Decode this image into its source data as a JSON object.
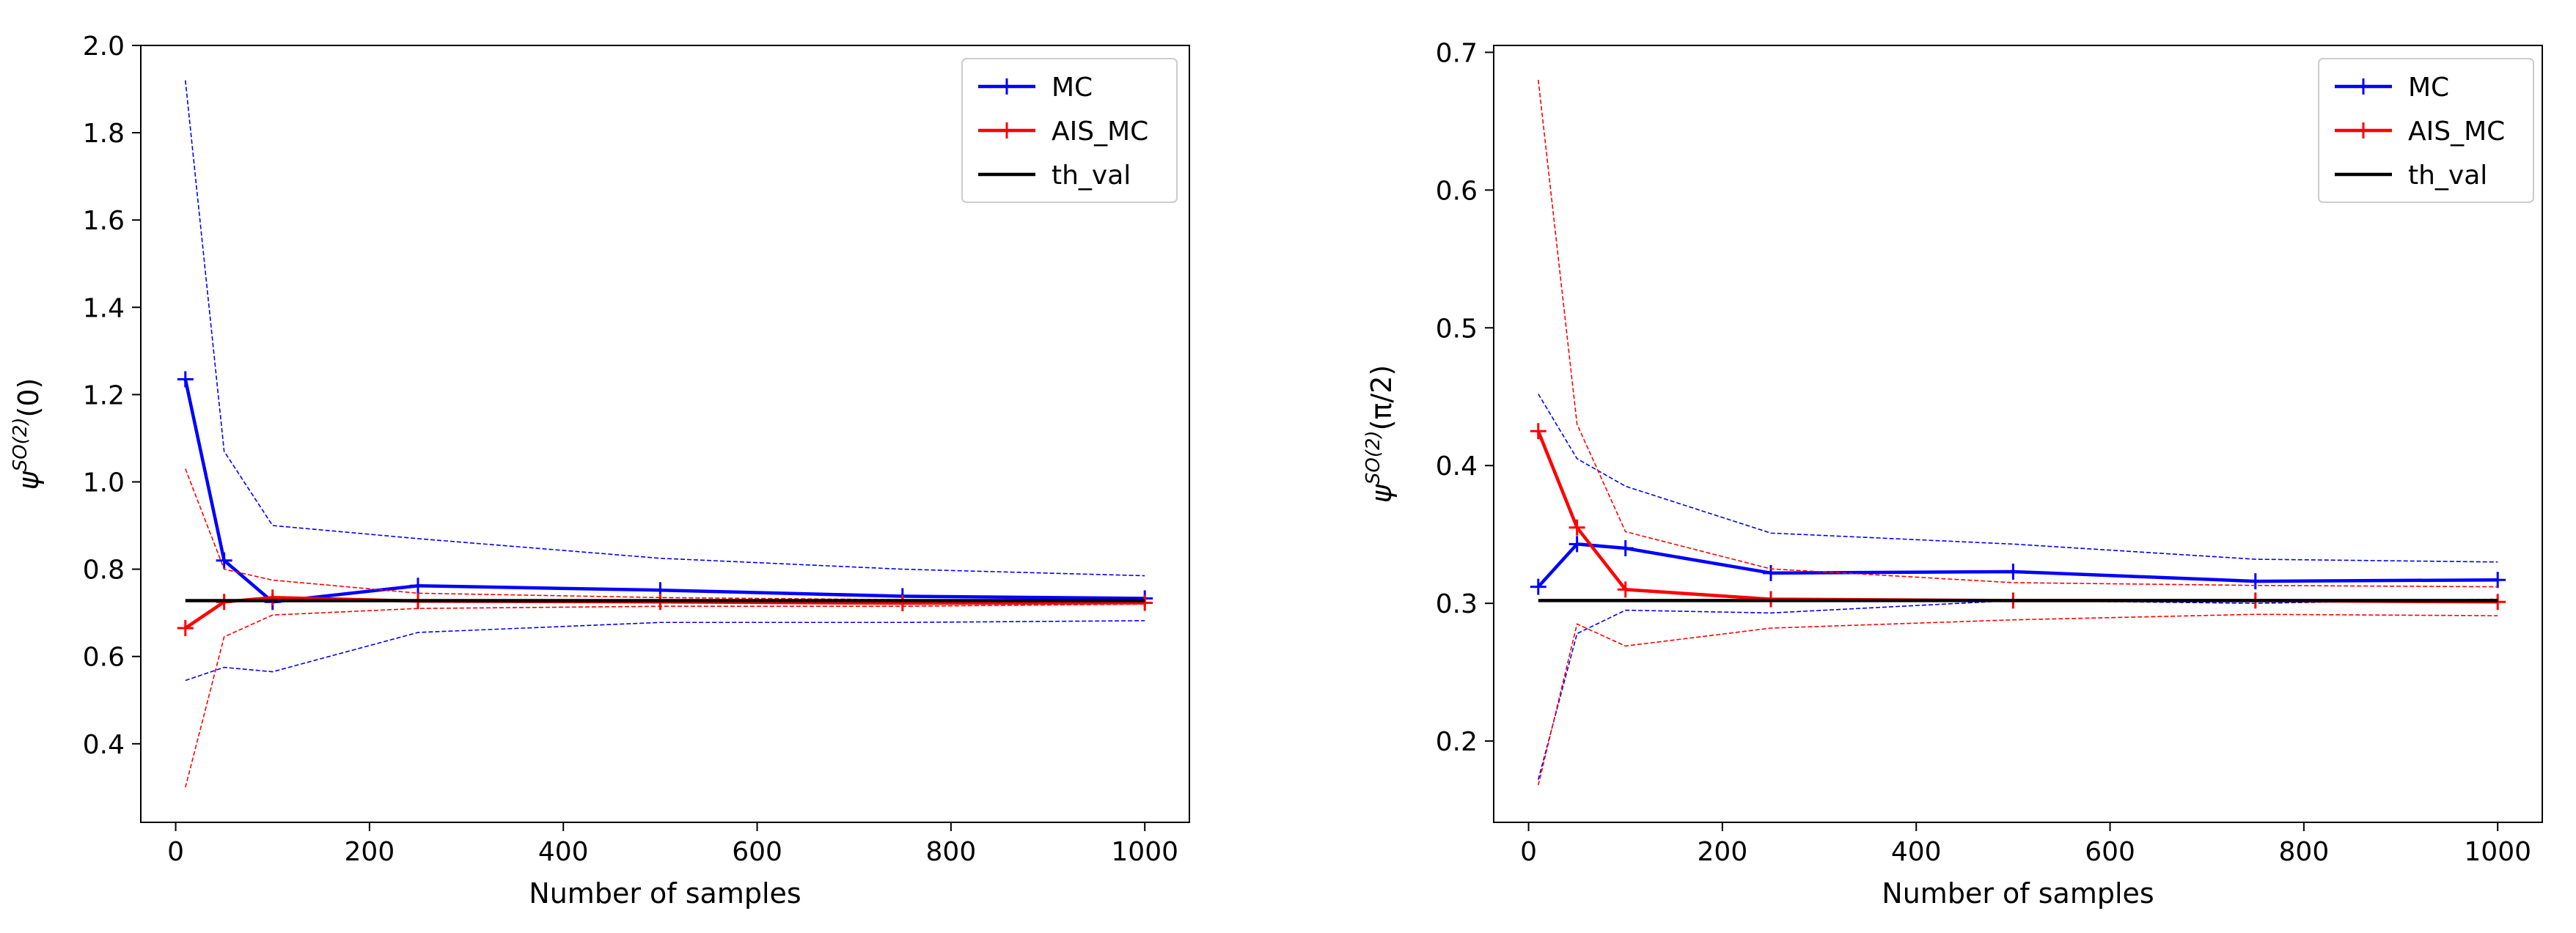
{
  "chart_data": [
    {
      "type": "line",
      "title": "",
      "xlabel": "Number of samples",
      "ylabel_base": "ψ",
      "ylabel_sup": "SO(2)",
      "ylabel_arg": "(0)",
      "xlim": [
        -36,
        1046
      ],
      "ylim": [
        0.22,
        2.0
      ],
      "xticks": [
        0,
        200,
        400,
        600,
        800,
        1000
      ],
      "xtick_labels": [
        "0",
        "200",
        "400",
        "600",
        "800",
        "1000"
      ],
      "yticks": [
        0.4,
        0.6,
        0.8,
        1.0,
        1.2,
        1.4,
        1.6,
        1.8,
        2.0
      ],
      "ytick_labels": [
        "0.4",
        "0.6",
        "0.8",
        "1.0",
        "1.2",
        "1.4",
        "1.6",
        "1.8",
        "2.0"
      ],
      "grid": false,
      "legend_position": "top-right",
      "x": [
        10,
        50,
        100,
        250,
        500,
        750,
        1000
      ],
      "series": [
        {
          "name": "MC",
          "color": "#0000ff",
          "marker": "+",
          "show_in_legend": true,
          "values": [
            1.235,
            0.82,
            0.725,
            0.762,
            0.752,
            0.738,
            0.733
          ]
        },
        {
          "name": "MC upper",
          "color": "#0000ff",
          "style": "dashed-thin",
          "show_in_legend": false,
          "values": [
            1.92,
            1.07,
            0.9,
            0.87,
            0.825,
            0.8,
            0.785
          ]
        },
        {
          "name": "MC lower",
          "color": "#0000ff",
          "style": "dashed-thin",
          "show_in_legend": false,
          "values": [
            0.545,
            0.575,
            0.565,
            0.655,
            0.678,
            0.678,
            0.682
          ]
        },
        {
          "name": "AIS_MC",
          "color": "#ff0000",
          "marker": "+",
          "show_in_legend": true,
          "values": [
            0.665,
            0.725,
            0.735,
            0.727,
            0.725,
            0.722,
            0.723
          ]
        },
        {
          "name": "AIS_MC upper",
          "color": "#ff0000",
          "style": "dashed-thin",
          "show_in_legend": false,
          "values": [
            1.03,
            0.8,
            0.775,
            0.745,
            0.735,
            0.73,
            0.73
          ]
        },
        {
          "name": "AIS_MC lower",
          "color": "#ff0000",
          "style": "dashed-thin",
          "show_in_legend": false,
          "values": [
            0.3,
            0.645,
            0.695,
            0.71,
            0.715,
            0.715,
            0.72
          ]
        },
        {
          "name": "th_val",
          "color": "#000000",
          "show_in_legend": true,
          "values": [
            0.728,
            0.728,
            0.728,
            0.728,
            0.728,
            0.728,
            0.728
          ]
        }
      ]
    },
    {
      "type": "line",
      "title": "",
      "xlabel": "Number of samples",
      "ylabel_base": "ψ",
      "ylabel_sup": "SO(2)",
      "ylabel_arg": "(π/2)",
      "xlim": [
        -36,
        1046
      ],
      "ylim": [
        0.141,
        0.705
      ],
      "xticks": [
        0,
        200,
        400,
        600,
        800,
        1000
      ],
      "xtick_labels": [
        "0",
        "200",
        "400",
        "600",
        "800",
        "1000"
      ],
      "yticks": [
        0.2,
        0.3,
        0.4,
        0.5,
        0.6,
        0.7
      ],
      "ytick_labels": [
        "0.2",
        "0.3",
        "0.4",
        "0.5",
        "0.6",
        "0.7"
      ],
      "grid": false,
      "legend_position": "top-right",
      "x": [
        10,
        50,
        100,
        250,
        500,
        750,
        1000
      ],
      "series": [
        {
          "name": "MC",
          "color": "#0000ff",
          "marker": "+",
          "show_in_legend": true,
          "values": [
            0.312,
            0.343,
            0.34,
            0.322,
            0.323,
            0.316,
            0.317
          ]
        },
        {
          "name": "MC upper",
          "color": "#0000ff",
          "style": "dashed-thin",
          "show_in_legend": false,
          "values": [
            0.452,
            0.405,
            0.385,
            0.351,
            0.343,
            0.332,
            0.33
          ]
        },
        {
          "name": "MC lower",
          "color": "#0000ff",
          "style": "dashed-thin",
          "show_in_legend": false,
          "values": [
            0.172,
            0.278,
            0.295,
            0.293,
            0.302,
            0.3,
            0.303
          ]
        },
        {
          "name": "AIS_MC",
          "color": "#ff0000",
          "marker": "+",
          "show_in_legend": true,
          "values": [
            0.425,
            0.355,
            0.31,
            0.303,
            0.302,
            0.302,
            0.301
          ]
        },
        {
          "name": "AIS_MC upper",
          "color": "#ff0000",
          "style": "dashed-thin",
          "show_in_legend": false,
          "values": [
            0.68,
            0.43,
            0.352,
            0.325,
            0.315,
            0.313,
            0.312
          ]
        },
        {
          "name": "AIS_MC lower",
          "color": "#ff0000",
          "style": "dashed-thin",
          "show_in_legend": false,
          "values": [
            0.168,
            0.285,
            0.269,
            0.282,
            0.288,
            0.292,
            0.291
          ]
        },
        {
          "name": "th_val",
          "color": "#000000",
          "show_in_legend": true,
          "values": [
            0.302,
            0.302,
            0.302,
            0.302,
            0.302,
            0.302,
            0.302
          ]
        }
      ]
    }
  ]
}
